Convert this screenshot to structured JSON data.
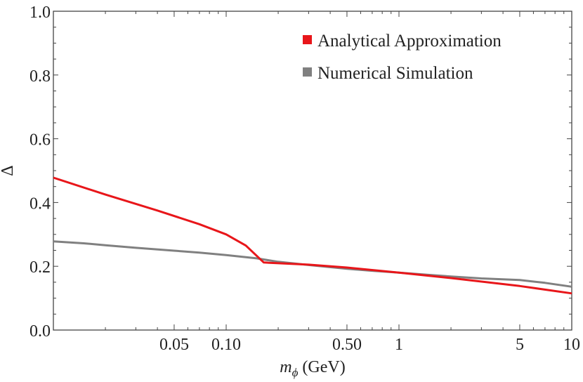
{
  "chart_data": {
    "type": "line",
    "title": "",
    "xlabel_main": "m",
    "xlabel_sub": "ϕ",
    "xlabel_unit": " (GeV)",
    "ylabel": "Δ",
    "xscale": "log",
    "xlim": [
      0.01,
      10
    ],
    "ylim": [
      0,
      1
    ],
    "xticks": [
      {
        "value": 0.05,
        "label": "0.05"
      },
      {
        "value": 0.1,
        "label": "0.10"
      },
      {
        "value": 0.5,
        "label": "0.50"
      },
      {
        "value": 1,
        "label": "1"
      },
      {
        "value": 5,
        "label": "5"
      },
      {
        "value": 10,
        "label": "10"
      }
    ],
    "yticks": [
      {
        "value": 0,
        "label": "0.0"
      },
      {
        "value": 0.2,
        "label": "0.2"
      },
      {
        "value": 0.4,
        "label": "0.4"
      },
      {
        "value": 0.6,
        "label": "0.6"
      },
      {
        "value": 0.8,
        "label": "0.8"
      },
      {
        "value": 1.0,
        "label": "1.0"
      }
    ],
    "grid": false,
    "legend_position": "top-right",
    "series": [
      {
        "name": "Analytical Approximation",
        "color": "#e8161a",
        "x": [
          0.01,
          0.02,
          0.04,
          0.07,
          0.1,
          0.13,
          0.165,
          0.3,
          0.5,
          1,
          2,
          5,
          10
        ],
        "y": [
          0.478,
          0.425,
          0.375,
          0.332,
          0.3,
          0.265,
          0.212,
          0.205,
          0.196,
          0.18,
          0.163,
          0.138,
          0.115
        ]
      },
      {
        "name": "Numerical Simulation",
        "color": "#808080",
        "x": [
          0.01,
          0.015,
          0.02,
          0.03,
          0.05,
          0.07,
          0.1,
          0.15,
          0.2,
          0.3,
          0.5,
          0.7,
          1,
          1.5,
          2,
          3,
          5,
          7,
          10
        ],
        "y": [
          0.278,
          0.272,
          0.266,
          0.258,
          0.249,
          0.243,
          0.235,
          0.225,
          0.214,
          0.204,
          0.192,
          0.186,
          0.18,
          0.173,
          0.168,
          0.162,
          0.157,
          0.148,
          0.136
        ]
      }
    ]
  }
}
